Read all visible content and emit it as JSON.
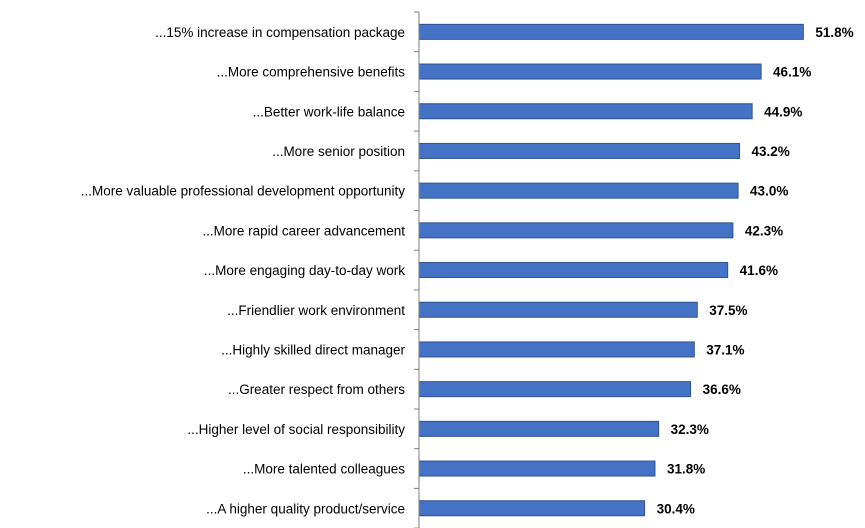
{
  "chart_data": {
    "type": "bar",
    "orientation": "horizontal",
    "categories": [
      "...15% increase in compensation package",
      "...More comprehensive benefits",
      "...Better  work-life balance",
      "...More senior position",
      "...More valuable professional development opportunity",
      "...More rapid career advancement",
      "...More engaging day-to-day work",
      "...Friendlier work environment",
      "...Highly skilled direct manager",
      "...Greater respect from others",
      "...Higher level of social responsibility",
      "...More talented colleagues",
      "...A higher quality product/service"
    ],
    "values": [
      51.8,
      46.1,
      44.9,
      43.2,
      43.0,
      42.3,
      41.6,
      37.5,
      37.1,
      36.6,
      32.3,
      31.8,
      30.4
    ],
    "value_labels": [
      "51.8%",
      "46.1%",
      "44.9%",
      "43.2%",
      "43.0%",
      "42.3%",
      "41.6%",
      "37.5%",
      "37.1%",
      "36.6%",
      "32.3%",
      "31.8%",
      "30.4%"
    ],
    "unit": "%",
    "title": "",
    "xlabel": "",
    "ylabel": "",
    "xlim": [
      0,
      60
    ],
    "grid": false,
    "legend": "none",
    "bar_color": "#4472C4",
    "bar_edge_color": "#2F528F"
  }
}
